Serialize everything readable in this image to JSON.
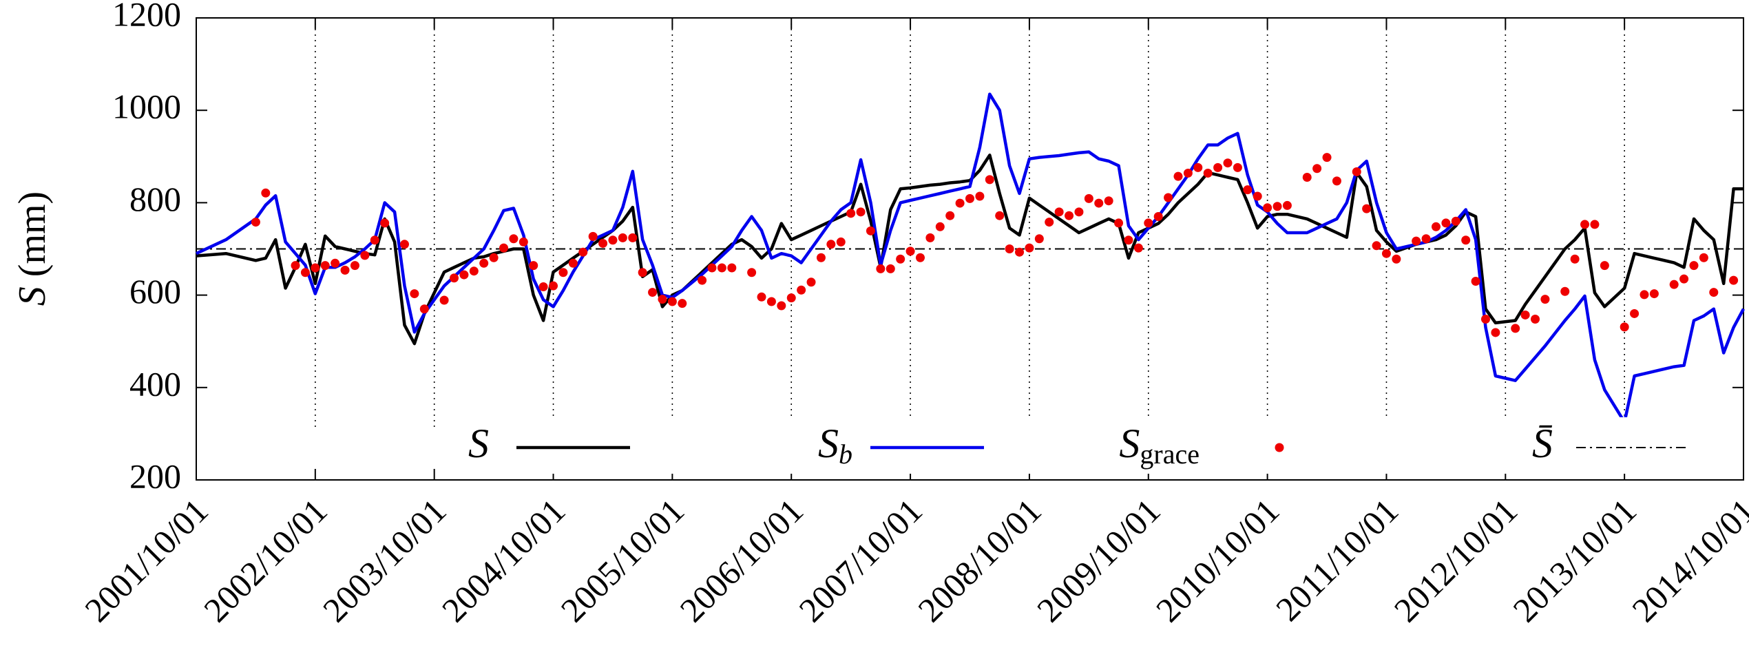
{
  "chart_data": {
    "type": "line",
    "ylabel": "S (mm)",
    "xlim": [
      "2001/10/01",
      "2014/10/01"
    ],
    "xticks": [
      "2001/10/01",
      "2002/10/01",
      "2003/10/01",
      "2004/10/01",
      "2005/10/01",
      "2006/10/01",
      "2007/10/01",
      "2008/10/01",
      "2009/10/01",
      "2010/10/01",
      "2011/10/01",
      "2012/10/01",
      "2013/10/01",
      "2014/10/01"
    ],
    "ylim": [
      200,
      1200
    ],
    "yticks": [
      200,
      400,
      600,
      800,
      1000,
      1200
    ],
    "grid": "x",
    "x": [
      "2001/10/01",
      "2002/01/01",
      "2002/04/01",
      "2002/05/01",
      "2002/06/01",
      "2002/07/01",
      "2002/08/01",
      "2002/09/01",
      "2002/10/01",
      "2002/11/01",
      "2002/12/01",
      "2003/01/01",
      "2003/02/01",
      "2003/03/01",
      "2003/04/01",
      "2003/05/01",
      "2003/06/01",
      "2003/07/01",
      "2003/08/01",
      "2003/09/01",
      "2003/11/01",
      "2003/12/01",
      "2004/01/01",
      "2004/02/01",
      "2004/03/01",
      "2004/04/01",
      "2004/05/01",
      "2004/06/01",
      "2004/07/01",
      "2004/08/01",
      "2004/09/01",
      "2004/10/01",
      "2004/11/01",
      "2004/12/01",
      "2005/01/01",
      "2005/02/01",
      "2005/03/01",
      "2005/04/01",
      "2005/05/01",
      "2005/06/01",
      "2005/07/01",
      "2005/08/01",
      "2005/09/01",
      "2005/10/01",
      "2005/11/01",
      "2006/01/01",
      "2006/02/01",
      "2006/03/01",
      "2006/04/01",
      "2006/05/01",
      "2006/06/01",
      "2006/07/01",
      "2006/08/01",
      "2006/09/01",
      "2006/10/01",
      "2006/11/01",
      "2006/12/01",
      "2007/01/01",
      "2007/02/01",
      "2007/03/01",
      "2007/04/01",
      "2007/05/01",
      "2007/06/01",
      "2007/07/01",
      "2007/08/01",
      "2007/09/01",
      "2007/10/01",
      "2007/11/01",
      "2007/12/01",
      "2008/01/01",
      "2008/02/01",
      "2008/03/01",
      "2008/04/01",
      "2008/05/01",
      "2008/06/01",
      "2008/07/01",
      "2008/08/01",
      "2008/09/01",
      "2008/10/01",
      "2008/11/01",
      "2008/12/01",
      "2009/01/01",
      "2009/02/01",
      "2009/03/01",
      "2009/04/01",
      "2009/05/01",
      "2009/06/01",
      "2009/07/01",
      "2009/08/01",
      "2009/09/01",
      "2009/10/01",
      "2009/11/01",
      "2009/12/01",
      "2010/01/01",
      "2010/02/01",
      "2010/03/01",
      "2010/04/01",
      "2010/05/01",
      "2010/06/01",
      "2010/07/01",
      "2010/08/01",
      "2010/09/01",
      "2010/10/01",
      "2010/11/01",
      "2010/12/01",
      "2011/02/01",
      "2011/03/01",
      "2011/04/01",
      "2011/05/01",
      "2011/06/01",
      "2011/07/01",
      "2011/08/01",
      "2011/09/01",
      "2011/10/01",
      "2011/11/01",
      "2012/01/01",
      "2012/02/01",
      "2012/03/01",
      "2012/04/01",
      "2012/05/01",
      "2012/06/01",
      "2012/07/01",
      "2012/08/01",
      "2012/09/01",
      "2012/11/01",
      "2012/12/01",
      "2013/01/01",
      "2013/02/01",
      "2013/04/01",
      "2013/05/01",
      "2013/06/01",
      "2013/07/01",
      "2013/08/01",
      "2013/10/01",
      "2013/11/01",
      "2013/12/01",
      "2014/01/01",
      "2014/03/01",
      "2014/04/01",
      "2014/05/01",
      "2014/06/01",
      "2014/07/01",
      "2014/08/01",
      "2014/09/01",
      "2014/10/01"
    ],
    "series": [
      {
        "name": "S",
        "color": "#000000",
        "style": "line",
        "values": [
          685,
          690,
          675,
          680,
          720,
          615,
          660,
          710,
          625,
          728,
          705,
          700,
          695,
          690,
          687,
          765,
          715,
          535,
          495,
          560,
          650,
          660,
          670,
          680,
          683,
          690,
          695,
          700,
          700,
          600,
          545,
          650,
          665,
          680,
          695,
          710,
          725,
          740,
          760,
          790,
          640,
          655,
          575,
          600,
          610,
          650,
          670,
          690,
          710,
          720,
          705,
          680,
          700,
          755,
          720,
          730,
          740,
          750,
          760,
          770,
          780,
          840,
          760,
          660,
          785,
          830,
          832,
          835,
          838,
          840,
          843,
          845,
          848,
          870,
          903,
          820,
          745,
          730,
          810,
          795,
          780,
          765,
          750,
          735,
          745,
          755,
          765,
          755,
          680,
          735,
          745,
          755,
          775,
          800,
          820,
          840,
          865,
          860,
          855,
          850,
          800,
          745,
          770,
          775,
          775,
          765,
          755,
          745,
          735,
          725,
          865,
          835,
          740,
          715,
          695,
          710,
          715,
          720,
          730,
          750,
          780,
          770,
          570,
          540,
          545,
          580,
          610,
          640,
          700,
          720,
          745,
          605,
          575,
          615,
          690,
          685,
          680,
          670,
          660,
          765,
          740,
          720,
          625,
          830,
          830
        ]
      },
      {
        "name": "S_b",
        "color": "#0000ee",
        "style": "line",
        "values": [
          690,
          720,
          765,
          795,
          815,
          715,
          690,
          665,
          603,
          660,
          660,
          670,
          683,
          700,
          720,
          800,
          780,
          620,
          520,
          560,
          620,
          640,
          660,
          680,
          700,
          740,
          783,
          788,
          730,
          635,
          590,
          575,
          610,
          650,
          685,
          720,
          730,
          740,
          790,
          868,
          720,
          665,
          600,
          595,
          610,
          645,
          665,
          685,
          705,
          740,
          770,
          740,
          680,
          690,
          685,
          670,
          700,
          730,
          760,
          785,
          800,
          893,
          800,
          665,
          740,
          800,
          805,
          810,
          815,
          820,
          825,
          830,
          835,
          920,
          1035,
          1000,
          880,
          820,
          895,
          898,
          900,
          902,
          905,
          908,
          910,
          895,
          890,
          880,
          750,
          720,
          745,
          770,
          800,
          830,
          860,
          895,
          925,
          925,
          940,
          950,
          860,
          795,
          780,
          755,
          735,
          735,
          745,
          755,
          765,
          800,
          870,
          890,
          800,
          735,
          700,
          710,
          715,
          725,
          740,
          760,
          785,
          720,
          530,
          425,
          415,
          440,
          465,
          490,
          545,
          570,
          598,
          460,
          395,
          325,
          425,
          430,
          435,
          445,
          448,
          545,
          555,
          570,
          475,
          530,
          570
        ]
      },
      {
        "name": "S_grace",
        "color": "#ee0000",
        "style": "points",
        "values": [
          null,
          null,
          758,
          821,
          null,
          null,
          664,
          649,
          659,
          664,
          669,
          654,
          664,
          686,
          719,
          756,
          null,
          710,
          603,
          570,
          589,
          637,
          644,
          652,
          669,
          681,
          702,
          722,
          715,
          664,
          618,
          620,
          649,
          669,
          693,
          727,
          712,
          719,
          724,
          724,
          649,
          606,
          591,
          586,
          582,
          632,
          659,
          659,
          659,
          null,
          649,
          596,
          586,
          577,
          594,
          611,
          628,
          681,
          710,
          715,
          777,
          780,
          739,
          657,
          657,
          678,
          695,
          681,
          724,
          748,
          772,
          799,
          809,
          814,
          850,
          772,
          700,
          693,
          702,
          722,
          758,
          780,
          772,
          780,
          809,
          799,
          804,
          756,
          719,
          702,
          756,
          770,
          811,
          857,
          864,
          876,
          864,
          876,
          886,
          876,
          828,
          814,
          789,
          792,
          794,
          855,
          874,
          898,
          847,
          null,
          867,
          787,
          707,
          690,
          678,
          717,
          722,
          748,
          756,
          760,
          719,
          630,
          548,
          519,
          528,
          557,
          548,
          591,
          608,
          678,
          753,
          753,
          664,
          531,
          560,
          601,
          603,
          623,
          635,
          664,
          681,
          606,
          null,
          632,
          null
        ]
      }
    ],
    "mean_line": {
      "name": "S̄",
      "value": 700,
      "color": "#000000"
    }
  }
}
